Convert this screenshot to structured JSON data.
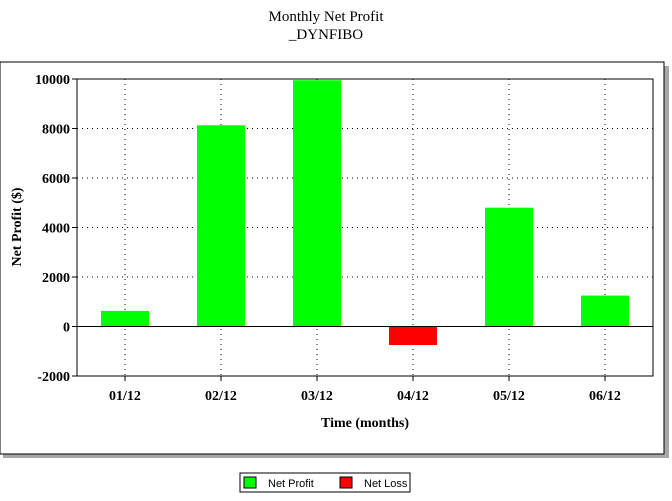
{
  "chart_data": {
    "type": "bar",
    "title": "Monthly Net Profit",
    "subtitle": "_DYNFIBO",
    "xlabel": "Time (months)",
    "ylabel": "Net Profit ($)",
    "categories": [
      "01/12",
      "02/12",
      "03/12",
      "04/12",
      "05/12",
      "06/12"
    ],
    "values": [
      630,
      8130,
      9950,
      -750,
      4800,
      1250
    ],
    "ylim": [
      -2000,
      10000
    ],
    "yticks": [
      "-2000",
      "0",
      "2000",
      "4000",
      "6000",
      "8000",
      "10000"
    ],
    "grid": true,
    "legend_position": "bottom-center",
    "legend": [
      {
        "label": "Net Profit",
        "color": "#00ff00"
      },
      {
        "label": "Net Loss",
        "color": "#ff0000"
      }
    ]
  }
}
